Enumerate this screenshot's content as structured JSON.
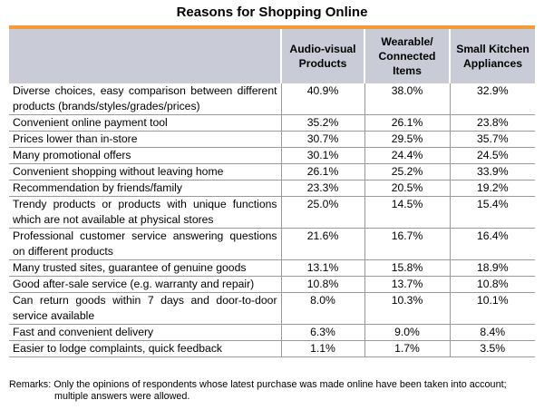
{
  "chart_data": {
    "type": "table",
    "title": "Reasons for Shopping Online",
    "columns": [
      "",
      "Audio-visual Products",
      "Wearable/ Connected Items",
      "Small Kitchen Appliances"
    ],
    "rows": [
      {
        "reason": "Diverse choices, easy comparison between different products (brands/styles/grades/prices)",
        "values": [
          "40.9%",
          "38.0%",
          "32.9%"
        ]
      },
      {
        "reason": "Convenient online payment tool",
        "values": [
          "35.2%",
          "26.1%",
          "23.8%"
        ]
      },
      {
        "reason": "Prices lower than in-store",
        "values": [
          "30.7%",
          "29.5%",
          "35.7%"
        ]
      },
      {
        "reason": "Many promotional offers",
        "values": [
          "30.1%",
          "24.4%",
          "24.5%"
        ]
      },
      {
        "reason": "Convenient shopping without leaving home",
        "values": [
          "26.1%",
          "25.2%",
          "33.9%"
        ]
      },
      {
        "reason": "Recommendation by friends/family",
        "values": [
          "23.3%",
          "20.5%",
          "19.2%"
        ]
      },
      {
        "reason": "Trendy products or products with unique functions which are not available at physical stores",
        "values": [
          "25.0%",
          "14.5%",
          "15.4%"
        ]
      },
      {
        "reason": "Professional customer service answering questions on different products",
        "values": [
          "21.6%",
          "16.7%",
          "16.4%"
        ]
      },
      {
        "reason": "Many trusted sites, guarantee of genuine goods",
        "values": [
          "13.1%",
          "15.8%",
          "18.9%"
        ]
      },
      {
        "reason": "Good after-sale service (e.g. warranty and repair)",
        "values": [
          "10.8%",
          "13.7%",
          "10.8%"
        ]
      },
      {
        "reason": "Can return goods within 7 days and door-to-door service available",
        "values": [
          "8.0%",
          "10.3%",
          "10.1%"
        ]
      },
      {
        "reason": "Fast and convenient delivery",
        "values": [
          "6.3%",
          "9.0%",
          "8.4%"
        ]
      },
      {
        "reason": "Easier to lodge complaints, quick feedback",
        "values": [
          "1.1%",
          "1.7%",
          "3.5%"
        ]
      }
    ],
    "remarks_line1": "Remarks: Only the opinions of respondents whose latest purchase was made online have been taken into account;",
    "remarks_line2": "multiple answers were allowed.",
    "header_color": "#c9ccd7",
    "accent_color": "#f39c3c"
  }
}
